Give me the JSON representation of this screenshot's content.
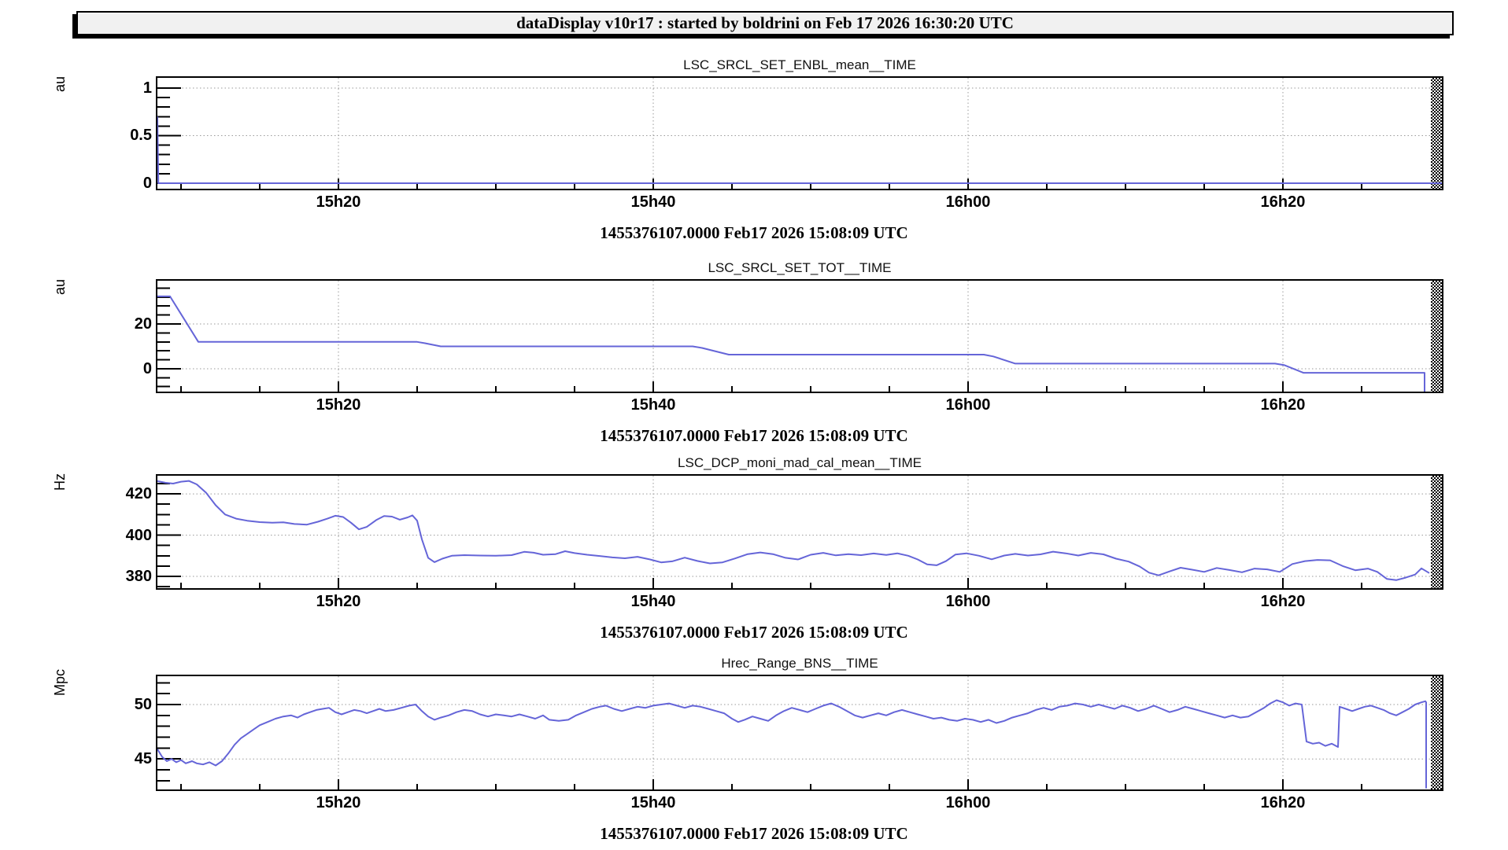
{
  "window": {
    "title": "dataDisplay v10r17 : started by boldrini on Feb 17 2026 16:30:20 UTC"
  },
  "colors": {
    "trace": "#6565d8",
    "grid": "#999999",
    "frame": "#000000",
    "titlebar_bg": "#f1f1f1"
  },
  "x_axis": {
    "xlim_minutes_after_15h": [
      8.5,
      90.1
    ],
    "labels": [
      "15h20",
      "15h40",
      "16h00",
      "16h20"
    ],
    "label_minutes": [
      20,
      40,
      60,
      80
    ],
    "minor_step_minutes": 5
  },
  "chart_data": [
    {
      "type": "line",
      "title": "LSC_SRCL_SET_ENBL_mean__TIME",
      "ylabel": "au",
      "footer": "1455376107.0000 Feb17 2026 15:08:09 UTC",
      "ylim": [
        -0.058,
        1.107
      ],
      "yticks": [
        {
          "v": 0,
          "label": "0"
        },
        {
          "v": 0.5,
          "label": "0.5"
        },
        {
          "v": 1,
          "label": "1"
        }
      ],
      "minor_step": 0.1,
      "points": [
        [
          8.5,
          0.7
        ],
        [
          8.56,
          0
        ],
        [
          90.1,
          0
        ]
      ]
    },
    {
      "type": "line",
      "title": "LSC_SRCL_SET_TOT__TIME",
      "ylabel": "au",
      "footer": "1455376107.0000 Feb17 2026 15:08:09 UTC",
      "ylim": [
        -10.2,
        39.3
      ],
      "yticks": [
        {
          "v": 0,
          "label": "0"
        },
        {
          "v": 20,
          "label": "20"
        }
      ],
      "minor_step": 4,
      "points": [
        [
          8.5,
          32.3
        ],
        [
          9.3,
          32.3
        ],
        [
          11.1,
          12
        ],
        [
          25,
          12
        ],
        [
          25.5,
          11.4
        ],
        [
          26.5,
          10
        ],
        [
          42.5,
          10
        ],
        [
          43.1,
          9.3
        ],
        [
          44.8,
          6.3
        ],
        [
          61,
          6.3
        ],
        [
          61.6,
          5.5
        ],
        [
          63,
          2.3
        ],
        [
          79.5,
          2.3
        ],
        [
          80.1,
          1.6
        ],
        [
          81.3,
          -1.8
        ],
        [
          89,
          -1.8
        ],
        [
          89,
          -10.2
        ]
      ]
    },
    {
      "type": "line",
      "title": "LSC_DCP_moni_mad_cal_mean__TIME",
      "ylabel": "Hz",
      "footer": "1455376107.0000 Feb17 2026 15:08:09 UTC",
      "ylim": [
        374.3,
        428.8
      ],
      "yticks": [
        {
          "v": 380,
          "label": "380"
        },
        {
          "v": 400,
          "label": "400"
        },
        {
          "v": 420,
          "label": "420"
        }
      ],
      "minor_step": 5,
      "points": [
        [
          8.5,
          426.2
        ],
        [
          9,
          425.4
        ],
        [
          9.5,
          425
        ],
        [
          10,
          425.9
        ],
        [
          10.5,
          426.3
        ],
        [
          11,
          424.6
        ],
        [
          11.6,
          420.5
        ],
        [
          12.2,
          414.5
        ],
        [
          12.8,
          410
        ],
        [
          13.5,
          408
        ],
        [
          14.2,
          407
        ],
        [
          15,
          406.3
        ],
        [
          15.8,
          406
        ],
        [
          16.5,
          406.2
        ],
        [
          17.2,
          405.4
        ],
        [
          18,
          405.1
        ],
        [
          18.7,
          406.5
        ],
        [
          19.3,
          408
        ],
        [
          19.8,
          409.4
        ],
        [
          20.3,
          408.8
        ],
        [
          20.8,
          406
        ],
        [
          21.3,
          402.8
        ],
        [
          21.8,
          404
        ],
        [
          22.4,
          407.3
        ],
        [
          22.9,
          409.3
        ],
        [
          23.4,
          409
        ],
        [
          23.9,
          407.5
        ],
        [
          24.4,
          408.6
        ],
        [
          24.7,
          409.6
        ],
        [
          25,
          407
        ],
        [
          25.3,
          398
        ],
        [
          25.7,
          389
        ],
        [
          26.1,
          386.9
        ],
        [
          26.6,
          388.6
        ],
        [
          27.2,
          390
        ],
        [
          28,
          390.3
        ],
        [
          29,
          390.1
        ],
        [
          30,
          390
        ],
        [
          31,
          390.3
        ],
        [
          31.8,
          391.9
        ],
        [
          32.4,
          391.5
        ],
        [
          33,
          390.5
        ],
        [
          33.8,
          390.8
        ],
        [
          34.4,
          392.2
        ],
        [
          35,
          391.3
        ],
        [
          35.8,
          390.5
        ],
        [
          36.6,
          389.9
        ],
        [
          37.4,
          389.2
        ],
        [
          38.2,
          388.8
        ],
        [
          39,
          389.5
        ],
        [
          39.8,
          388.2
        ],
        [
          40.5,
          386.8
        ],
        [
          41.2,
          387.3
        ],
        [
          42,
          389.1
        ],
        [
          42.8,
          387.5
        ],
        [
          43.6,
          386.3
        ],
        [
          44.4,
          386.8
        ],
        [
          45.2,
          388.7
        ],
        [
          46,
          390.8
        ],
        [
          46.8,
          391.6
        ],
        [
          47.6,
          390.8
        ],
        [
          48.4,
          389
        ],
        [
          49.2,
          388.2
        ],
        [
          50,
          390.5
        ],
        [
          50.8,
          391.4
        ],
        [
          51.6,
          390.2
        ],
        [
          52.4,
          390.8
        ],
        [
          53.2,
          390.3
        ],
        [
          54,
          391.1
        ],
        [
          54.8,
          390.4
        ],
        [
          55.5,
          391.2
        ],
        [
          56.2,
          390
        ],
        [
          56.8,
          388.2
        ],
        [
          57.4,
          385.8
        ],
        [
          58,
          385.4
        ],
        [
          58.6,
          387.4
        ],
        [
          59.2,
          390.6
        ],
        [
          59.9,
          391.2
        ],
        [
          60.7,
          390
        ],
        [
          61.5,
          388.3
        ],
        [
          62.3,
          390.1
        ],
        [
          63,
          390.9
        ],
        [
          63.8,
          390.1
        ],
        [
          64.6,
          390.7
        ],
        [
          65.4,
          392
        ],
        [
          66.2,
          391.2
        ],
        [
          67,
          390.1
        ],
        [
          67.8,
          391.4
        ],
        [
          68.6,
          390.7
        ],
        [
          69.4,
          388.6
        ],
        [
          70.2,
          387.2
        ],
        [
          70.9,
          384.8
        ],
        [
          71.5,
          381.8
        ],
        [
          72.1,
          380.5
        ],
        [
          72.8,
          382.4
        ],
        [
          73.5,
          384.2
        ],
        [
          74.2,
          383.3
        ],
        [
          75,
          382.2
        ],
        [
          75.8,
          384.1
        ],
        [
          76.6,
          383.1
        ],
        [
          77.4,
          382
        ],
        [
          78.2,
          383.8
        ],
        [
          79,
          383.4
        ],
        [
          79.8,
          382.2
        ],
        [
          80.6,
          386
        ],
        [
          81.4,
          387.4
        ],
        [
          82.2,
          388
        ],
        [
          83,
          387.8
        ],
        [
          83.8,
          385
        ],
        [
          84.6,
          383
        ],
        [
          85.4,
          383.8
        ],
        [
          86,
          382.2
        ],
        [
          86.6,
          378.8
        ],
        [
          87.2,
          378.2
        ],
        [
          87.8,
          379.4
        ],
        [
          88.4,
          380.9
        ],
        [
          88.8,
          383.9
        ],
        [
          89.3,
          381.6
        ]
      ]
    },
    {
      "type": "line",
      "title": "Hrec_Range_BNS__TIME",
      "ylabel": "Mpc",
      "footer": "1455376107.0000 Feb17 2026 15:08:09 UTC",
      "ylim": [
        42.2,
        52.6
      ],
      "yticks": [
        {
          "v": 45,
          "label": "45"
        },
        {
          "v": 50,
          "label": "50"
        }
      ],
      "minor_step": 1,
      "points": [
        [
          8.5,
          45.9
        ],
        [
          8.8,
          45.2
        ],
        [
          9.1,
          44.8
        ],
        [
          9.4,
          45
        ],
        [
          9.7,
          44.7
        ],
        [
          10,
          44.9
        ],
        [
          10.3,
          44.6
        ],
        [
          10.7,
          44.8
        ],
        [
          11,
          44.6
        ],
        [
          11.4,
          44.5
        ],
        [
          11.8,
          44.7
        ],
        [
          12.2,
          44.4
        ],
        [
          12.6,
          44.8
        ],
        [
          13,
          45.5
        ],
        [
          13.4,
          46.3
        ],
        [
          13.8,
          46.9
        ],
        [
          14.2,
          47.3
        ],
        [
          14.6,
          47.7
        ],
        [
          15,
          48.1
        ],
        [
          15.5,
          48.4
        ],
        [
          16,
          48.7
        ],
        [
          16.5,
          48.9
        ],
        [
          17,
          49
        ],
        [
          17.4,
          48.8
        ],
        [
          17.8,
          49.1
        ],
        [
          18.2,
          49.3
        ],
        [
          18.6,
          49.5
        ],
        [
          19,
          49.6
        ],
        [
          19.4,
          49.7
        ],
        [
          19.8,
          49.3
        ],
        [
          20.2,
          49.1
        ],
        [
          20.6,
          49.3
        ],
        [
          21,
          49.5
        ],
        [
          21.4,
          49.4
        ],
        [
          21.8,
          49.2
        ],
        [
          22.2,
          49.4
        ],
        [
          22.6,
          49.6
        ],
        [
          23,
          49.4
        ],
        [
          23.5,
          49.5
        ],
        [
          24,
          49.7
        ],
        [
          24.5,
          49.9
        ],
        [
          24.9,
          50
        ],
        [
          25.3,
          49.4
        ],
        [
          25.7,
          48.9
        ],
        [
          26.1,
          48.6
        ],
        [
          26.5,
          48.8
        ],
        [
          27,
          49
        ],
        [
          27.5,
          49.3
        ],
        [
          28,
          49.5
        ],
        [
          28.5,
          49.4
        ],
        [
          29,
          49.1
        ],
        [
          29.5,
          48.9
        ],
        [
          30,
          49.1
        ],
        [
          30.5,
          49
        ],
        [
          31,
          48.9
        ],
        [
          31.5,
          49.1
        ],
        [
          32,
          48.9
        ],
        [
          32.5,
          48.7
        ],
        [
          33,
          49
        ],
        [
          33.4,
          48.6
        ],
        [
          34,
          48.5
        ],
        [
          34.6,
          48.6
        ],
        [
          35.1,
          49
        ],
        [
          35.6,
          49.3
        ],
        [
          36.1,
          49.6
        ],
        [
          36.6,
          49.8
        ],
        [
          37,
          49.9
        ],
        [
          37.5,
          49.6
        ],
        [
          38,
          49.4
        ],
        [
          38.5,
          49.6
        ],
        [
          39,
          49.8
        ],
        [
          39.5,
          49.7
        ],
        [
          40,
          49.9
        ],
        [
          40.5,
          50
        ],
        [
          41,
          50.1
        ],
        [
          41.5,
          49.9
        ],
        [
          42,
          49.7
        ],
        [
          42.5,
          49.9
        ],
        [
          43,
          49.8
        ],
        [
          43.5,
          49.6
        ],
        [
          44,
          49.4
        ],
        [
          44.5,
          49.2
        ],
        [
          45,
          48.7
        ],
        [
          45.4,
          48.4
        ],
        [
          45.8,
          48.6
        ],
        [
          46.3,
          48.9
        ],
        [
          46.8,
          48.7
        ],
        [
          47.3,
          48.5
        ],
        [
          47.8,
          49
        ],
        [
          48.3,
          49.4
        ],
        [
          48.8,
          49.7
        ],
        [
          49.3,
          49.5
        ],
        [
          49.8,
          49.3
        ],
        [
          50.3,
          49.6
        ],
        [
          50.8,
          49.9
        ],
        [
          51.3,
          50.1
        ],
        [
          51.8,
          49.8
        ],
        [
          52.3,
          49.4
        ],
        [
          52.8,
          49
        ],
        [
          53.3,
          48.8
        ],
        [
          53.8,
          49
        ],
        [
          54.3,
          49.2
        ],
        [
          54.8,
          49
        ],
        [
          55.3,
          49.3
        ],
        [
          55.8,
          49.5
        ],
        [
          56.3,
          49.3
        ],
        [
          56.8,
          49.1
        ],
        [
          57.3,
          48.9
        ],
        [
          57.8,
          48.7
        ],
        [
          58.3,
          48.8
        ],
        [
          58.8,
          48.6
        ],
        [
          59.3,
          48.5
        ],
        [
          59.8,
          48.7
        ],
        [
          60.3,
          48.6
        ],
        [
          60.8,
          48.4
        ],
        [
          61.3,
          48.6
        ],
        [
          61.8,
          48.3
        ],
        [
          62.3,
          48.5
        ],
        [
          62.8,
          48.8
        ],
        [
          63.3,
          49
        ],
        [
          63.8,
          49.2
        ],
        [
          64.3,
          49.5
        ],
        [
          64.8,
          49.7
        ],
        [
          65.3,
          49.5
        ],
        [
          65.8,
          49.8
        ],
        [
          66.3,
          49.9
        ],
        [
          66.8,
          50.1
        ],
        [
          67.3,
          50
        ],
        [
          67.8,
          49.8
        ],
        [
          68.3,
          50
        ],
        [
          68.8,
          49.8
        ],
        [
          69.3,
          49.6
        ],
        [
          69.8,
          49.9
        ],
        [
          70.3,
          49.7
        ],
        [
          70.8,
          49.4
        ],
        [
          71.3,
          49.6
        ],
        [
          71.8,
          49.9
        ],
        [
          72.3,
          49.6
        ],
        [
          72.8,
          49.3
        ],
        [
          73.3,
          49.5
        ],
        [
          73.8,
          49.8
        ],
        [
          74.3,
          49.6
        ],
        [
          74.8,
          49.4
        ],
        [
          75.3,
          49.2
        ],
        [
          75.8,
          49
        ],
        [
          76.3,
          48.8
        ],
        [
          76.8,
          49
        ],
        [
          77.3,
          48.8
        ],
        [
          77.8,
          48.9
        ],
        [
          78.3,
          49.3
        ],
        [
          78.8,
          49.7
        ],
        [
          79.2,
          50.1
        ],
        [
          79.6,
          50.4
        ],
        [
          80,
          50.2
        ],
        [
          80.4,
          49.9
        ],
        [
          80.8,
          50.1
        ],
        [
          81.2,
          50
        ],
        [
          81.5,
          46.6
        ],
        [
          81.9,
          46.4
        ],
        [
          82.3,
          46.5
        ],
        [
          82.7,
          46.2
        ],
        [
          83.1,
          46.4
        ],
        [
          83.5,
          46.1
        ],
        [
          83.6,
          49.8
        ],
        [
          84,
          49.6
        ],
        [
          84.4,
          49.4
        ],
        [
          84.8,
          49.6
        ],
        [
          85.2,
          49.8
        ],
        [
          85.6,
          49.9
        ],
        [
          86,
          49.7
        ],
        [
          86.4,
          49.5
        ],
        [
          86.8,
          49.2
        ],
        [
          87.2,
          49
        ],
        [
          87.6,
          49.3
        ],
        [
          88,
          49.6
        ],
        [
          88.4,
          50
        ],
        [
          88.8,
          50.2
        ],
        [
          89.05,
          50.3
        ],
        [
          89.1,
          50.2
        ],
        [
          89.1,
          42.3
        ]
      ]
    }
  ]
}
